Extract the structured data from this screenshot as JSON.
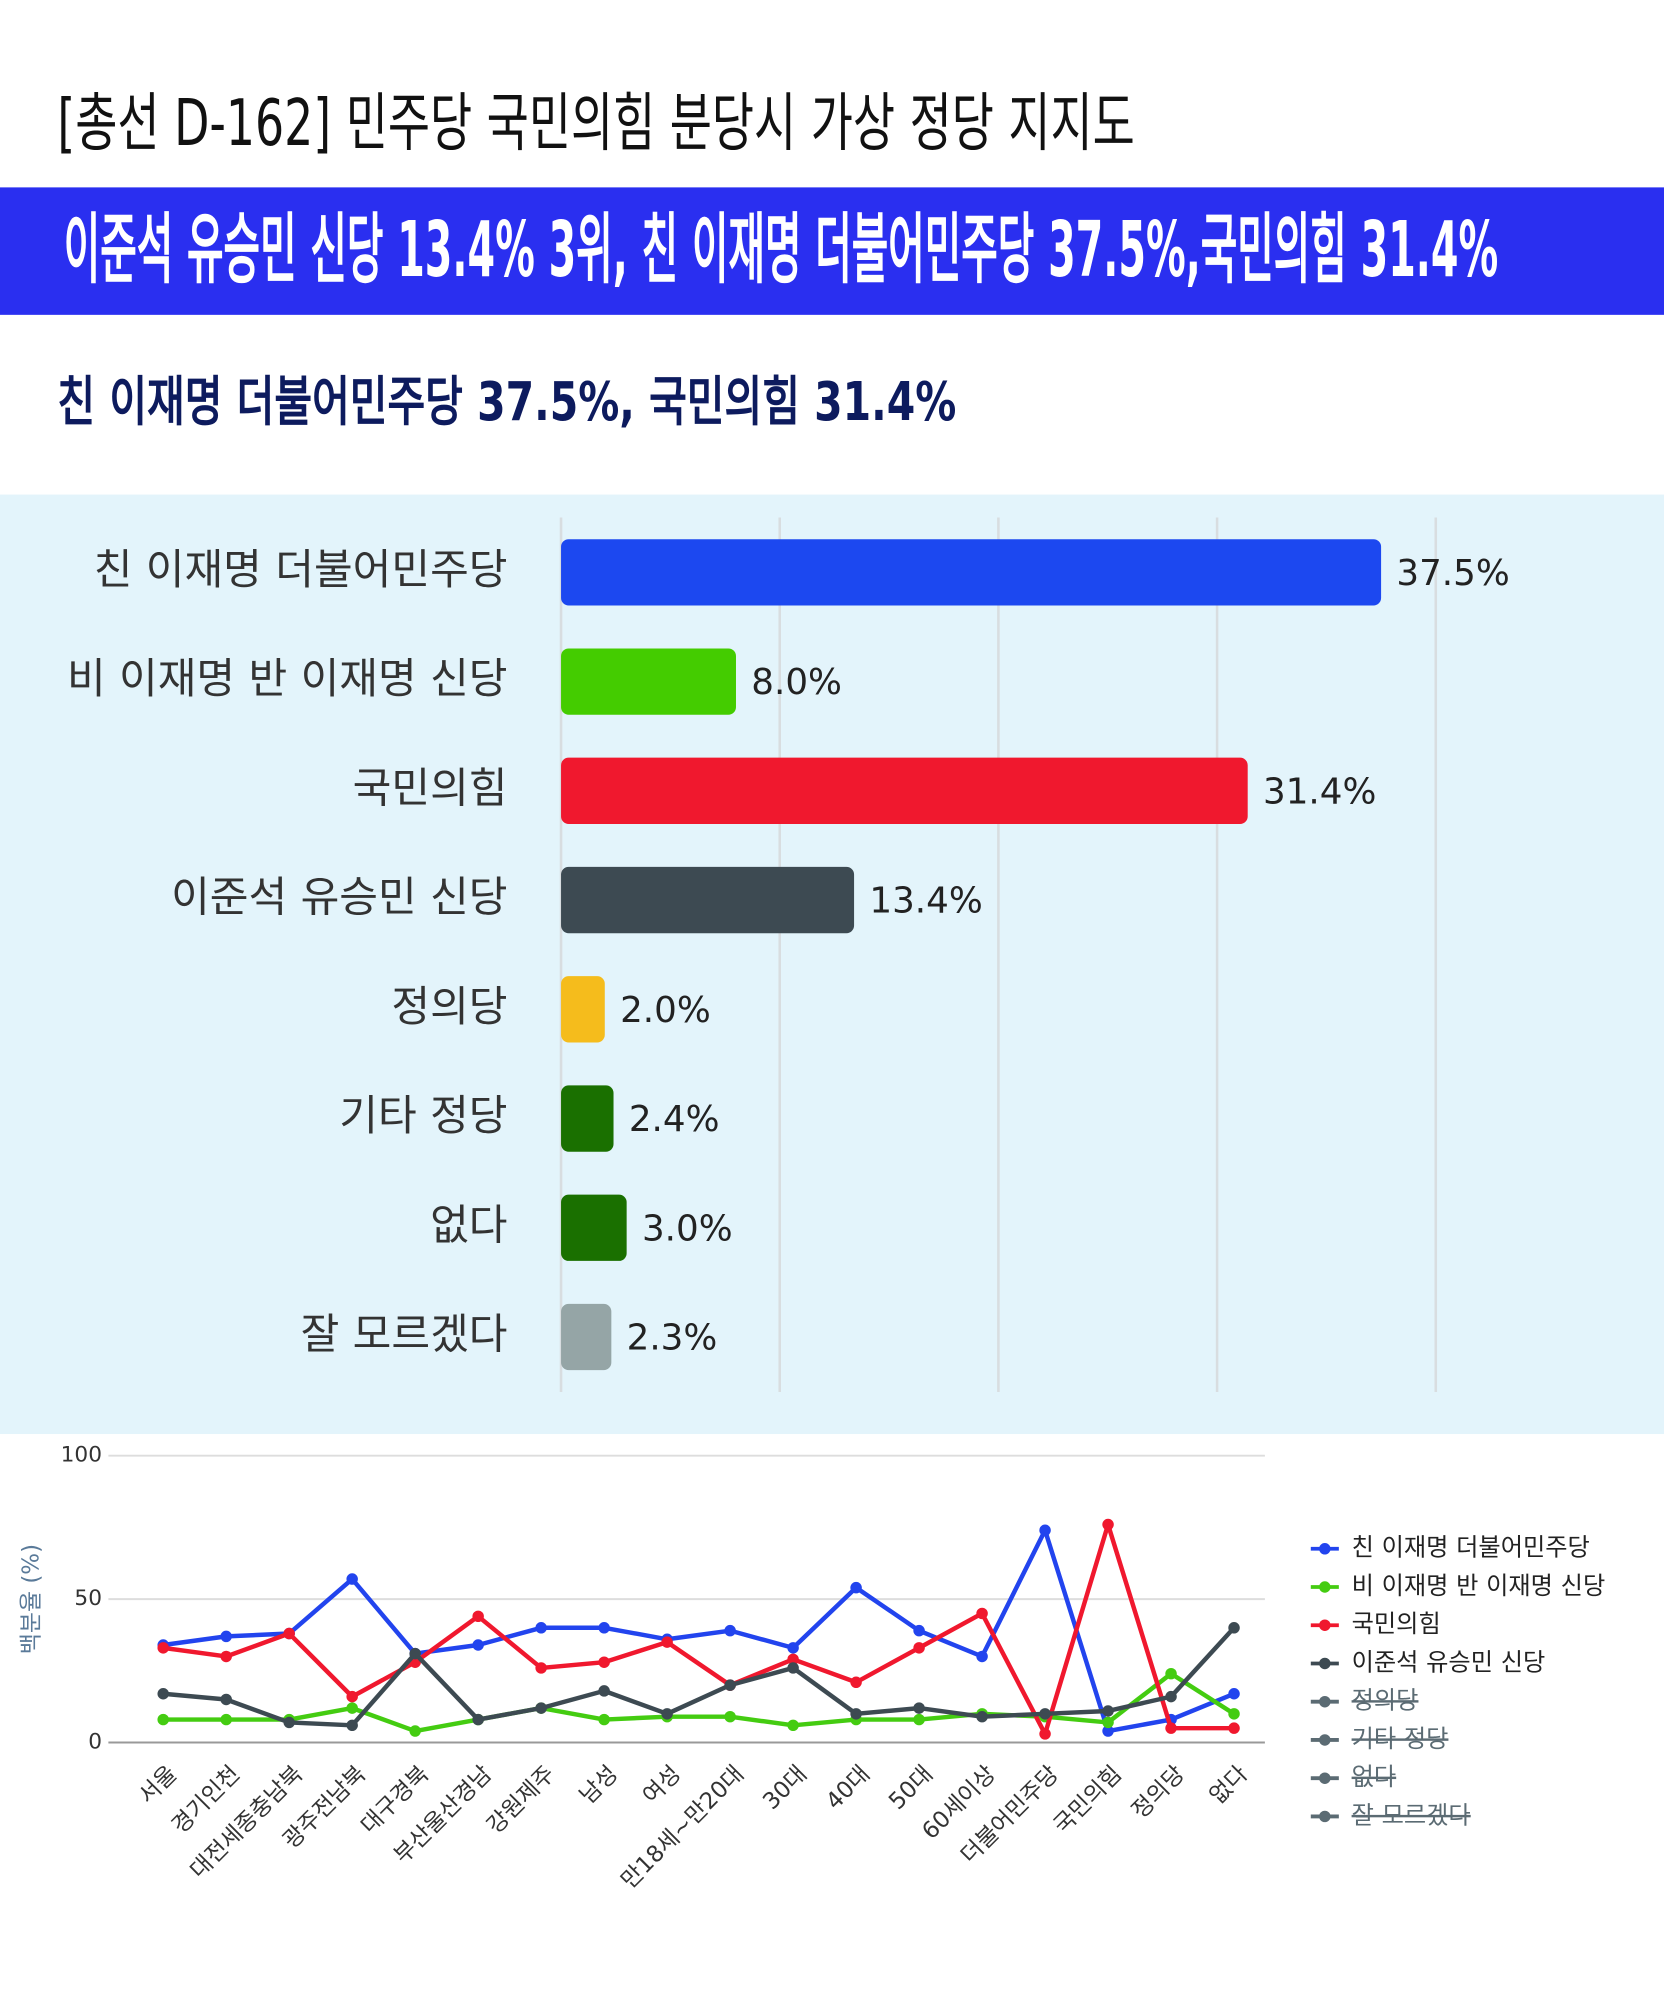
{
  "header": {
    "title": "[총선 D-162] 민주당 국민의힘 분당시 가상 정당 지지도",
    "headline": "이준석 유승민 신당 13.4% 3위, 친 이재명 더불어민주당 37.5%,국민의힘 31.4%",
    "subtitle": "친 이재명 더불어민주당 37.5%, 국민의힘 31.4%"
  },
  "chart_data": [
    {
      "type": "bar",
      "orientation": "horizontal",
      "categories": [
        "친 이재명 더불어민주당",
        "비 이재명 반 이재명 신당",
        "국민의힘",
        "이준석 유승민 신당",
        "정의당",
        "기타 정당",
        "없다",
        "잘 모르겠다"
      ],
      "values": [
        37.5,
        8.0,
        31.4,
        13.4,
        2.0,
        2.4,
        3.0,
        2.3
      ],
      "value_labels": [
        "37.5%",
        "8.0%",
        "31.4%",
        "13.4%",
        "2.0%",
        "2.4%",
        "3.0%",
        "2.3%"
      ],
      "colors": [
        "#1c48f0",
        "#44cc00",
        "#f0182e",
        "#3d4a52",
        "#f5bc1c",
        "#1a7000",
        "#1a7000",
        "#95a5a6"
      ],
      "xlim": [
        0,
        40
      ],
      "xticks": [
        0,
        10,
        20,
        30,
        40
      ],
      "grid": true
    },
    {
      "type": "line",
      "ylabel": "백분율 (%)",
      "categories": [
        "서울",
        "경기인천",
        "대전세종충남북",
        "광주전남북",
        "대구경북",
        "부산울산경남",
        "강원제주",
        "남성",
        "여성",
        "만18세~만20대",
        "30대",
        "40대",
        "50대",
        "60세이상",
        "더불어민주당",
        "국민의힘",
        "정의당",
        "없다"
      ],
      "ylim": [
        0,
        100
      ],
      "yticks": [
        0,
        50,
        100
      ],
      "grid": true,
      "legend": "right",
      "series": [
        {
          "name": "친 이재명 더불어민주당",
          "color": "#2244ee",
          "values": [
            34,
            37,
            38,
            57,
            31,
            34,
            40,
            40,
            36,
            39,
            33,
            54,
            39,
            30,
            74,
            4,
            8,
            17
          ]
        },
        {
          "name": "비 이재명 반 이재명 신당",
          "color": "#44cc11",
          "values": [
            8,
            8,
            8,
            12,
            4,
            8,
            12,
            8,
            9,
            9,
            6,
            8,
            8,
            10,
            9,
            7,
            24,
            10
          ]
        },
        {
          "name": "국민의힘",
          "color": "#f0182e",
          "values": [
            33,
            30,
            38,
            16,
            28,
            44,
            26,
            28,
            35,
            20,
            29,
            21,
            33,
            45,
            3,
            76,
            5,
            5
          ]
        },
        {
          "name": "이준석 유승민 신당",
          "color": "#3d4a52",
          "values": [
            17,
            15,
            7,
            6,
            31,
            8,
            12,
            18,
            10,
            20,
            26,
            10,
            12,
            9,
            10,
            11,
            16,
            40
          ]
        },
        {
          "name": "정의당",
          "color": "#5b6b73",
          "hidden": true,
          "values": [
            null,
            null,
            null,
            null,
            null,
            null,
            null,
            null,
            null,
            null,
            null,
            null,
            null,
            null,
            null,
            null,
            null,
            null
          ]
        },
        {
          "name": "기타 정당",
          "color": "#5b6b73",
          "hidden": true,
          "values": [
            null,
            null,
            null,
            null,
            null,
            null,
            null,
            null,
            null,
            null,
            null,
            null,
            null,
            null,
            null,
            null,
            null,
            null
          ]
        },
        {
          "name": "없다",
          "color": "#5b6b73",
          "hidden": true,
          "values": [
            null,
            null,
            null,
            null,
            null,
            null,
            null,
            null,
            null,
            null,
            null,
            null,
            null,
            null,
            null,
            null,
            null,
            null
          ]
        },
        {
          "name": "잘 모르겠다",
          "color": "#5b6b73",
          "hidden": true,
          "values": [
            null,
            null,
            null,
            null,
            null,
            null,
            null,
            null,
            null,
            null,
            null,
            null,
            null,
            null,
            null,
            null,
            null,
            null
          ]
        }
      ]
    }
  ]
}
